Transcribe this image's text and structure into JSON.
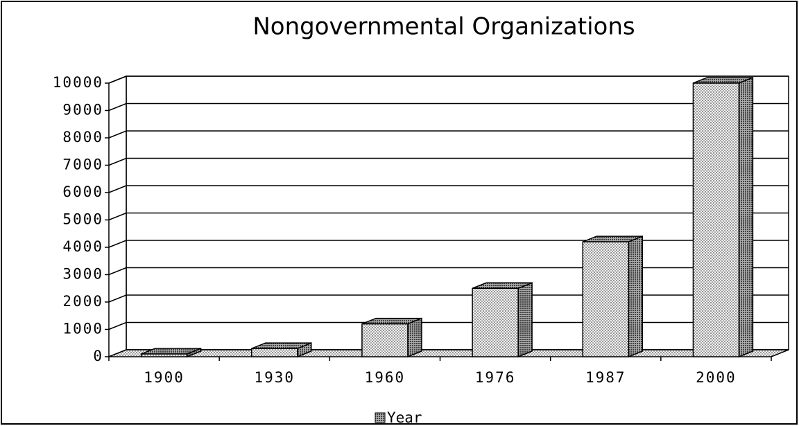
{
  "chart_data": {
    "type": "bar3d",
    "title": "Nongovernmental Organizations",
    "categories": [
      "1900",
      "1930",
      "1960",
      "1976",
      "1987",
      "2000"
    ],
    "series": [
      {
        "name": "Year",
        "color": "#cfcfcf",
        "values": [
          100,
          300,
          1200,
          2500,
          4200,
          10000
        ]
      }
    ],
    "ylim": [
      0,
      10000
    ],
    "yticks": [
      0,
      1000,
      2000,
      3000,
      4000,
      5000,
      6000,
      7000,
      8000,
      9000,
      10000
    ],
    "grid": true,
    "legend": "bottom"
  }
}
